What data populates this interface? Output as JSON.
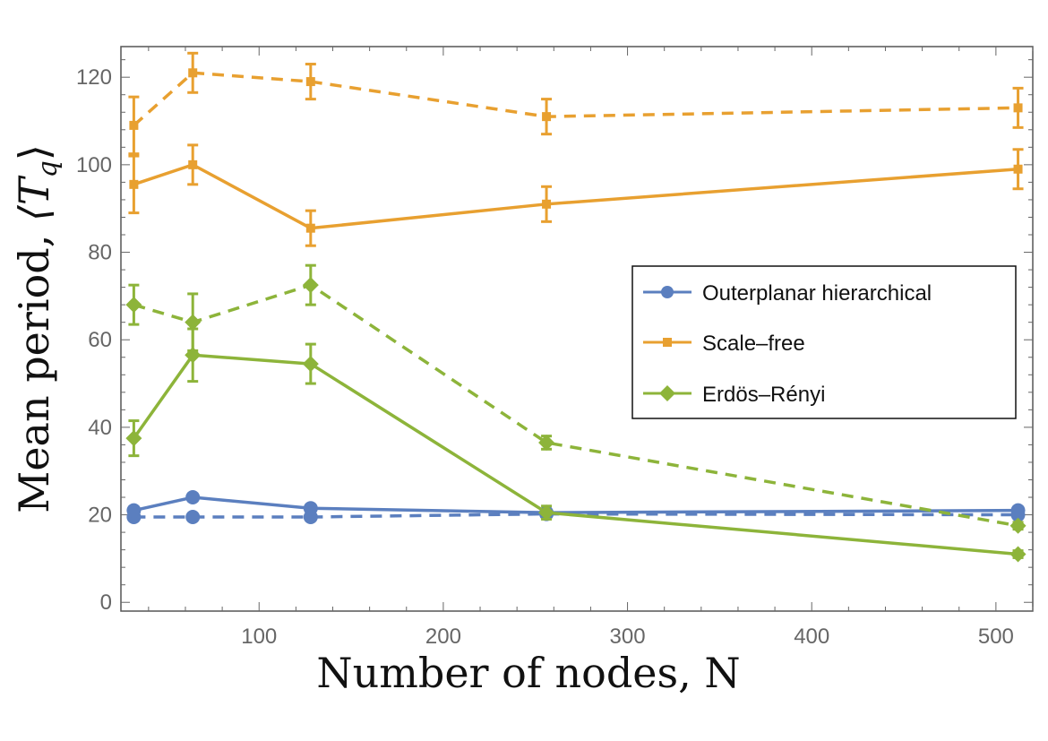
{
  "chart_data": {
    "type": "line",
    "xlabel": "Number of nodes, N",
    "ylabel_prefix": "Mean period, ",
    "ylabel_symbol": "⟨T",
    "ylabel_subscript": "q",
    "ylabel_close": "⟩",
    "xlim": [
      25,
      520
    ],
    "ylim": [
      -2,
      127
    ],
    "xticks": [
      100,
      200,
      300,
      400,
      500
    ],
    "yticks": [
      0,
      20,
      40,
      60,
      80,
      100,
      120
    ],
    "grid": false,
    "legend_position": "center-right",
    "series": [
      {
        "name": "Outerplanar hierarchical",
        "color": "#5b7fbf",
        "marker": "circle",
        "solid": {
          "x": [
            32,
            64,
            128,
            256,
            512
          ],
          "y": [
            21,
            24,
            21.5,
            20.5,
            21
          ],
          "err": [
            0.8,
            0.8,
            0.8,
            0.8,
            0.8
          ]
        },
        "dashed": {
          "x": [
            32,
            64,
            128,
            256,
            512
          ],
          "y": [
            19.5,
            19.5,
            19.5,
            20.2,
            20
          ],
          "err": [
            0.5,
            0.5,
            0.5,
            0.5,
            0.5
          ]
        }
      },
      {
        "name": "Scale–free",
        "color": "#e8a030",
        "marker": "square",
        "solid": {
          "x": [
            32,
            64,
            128,
            256,
            512
          ],
          "y": [
            95.5,
            100,
            85.5,
            91,
            99
          ],
          "err": [
            6.5,
            4.5,
            4,
            4,
            4.5
          ]
        },
        "dashed": {
          "x": [
            32,
            64,
            128,
            256,
            512
          ],
          "y": [
            109,
            121,
            119,
            111,
            113
          ],
          "err": [
            6.5,
            4.5,
            4,
            4,
            4.5
          ]
        }
      },
      {
        "name": "Erdös–Rényi",
        "color": "#8db43a",
        "marker": "diamond",
        "solid": {
          "x": [
            32,
            64,
            128,
            256,
            512
          ],
          "y": [
            37.5,
            56.5,
            54.5,
            20.5,
            11
          ],
          "err": [
            4,
            6,
            4.5,
            1.5,
            0.8
          ]
        },
        "dashed": {
          "x": [
            32,
            64,
            128,
            256,
            512
          ],
          "y": [
            68,
            64,
            72.5,
            36.5,
            17.5
          ],
          "err": [
            4.5,
            6.5,
            4.5,
            1.5,
            0.8
          ]
        }
      }
    ]
  }
}
